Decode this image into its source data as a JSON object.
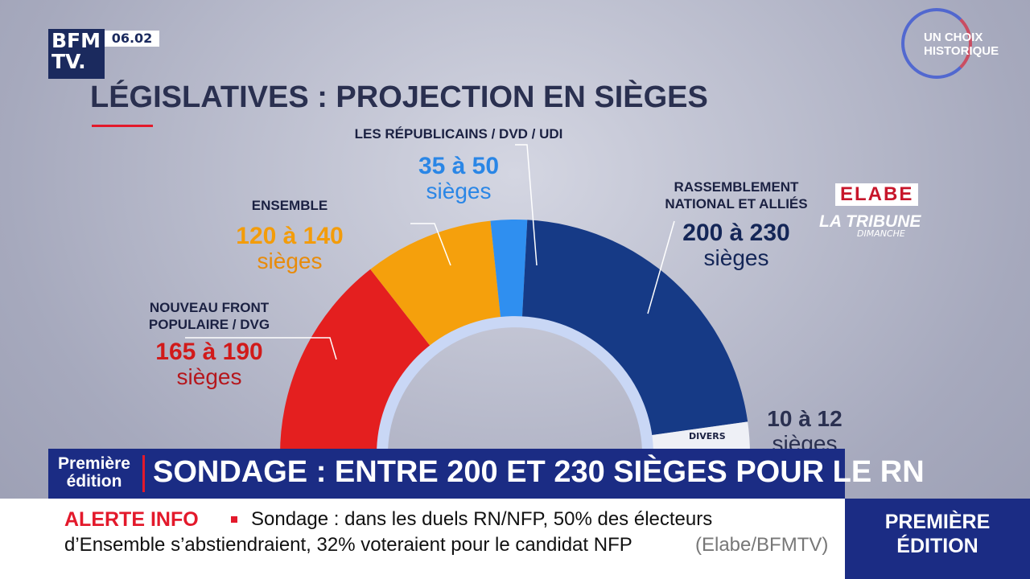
{
  "header": {
    "logo_top": "BFM",
    "logo_bottom": "TV.",
    "time": "06.02",
    "badge_lines": [
      "UN CHOIX",
      "HISTORIQUE"
    ]
  },
  "graphic": {
    "title": "LÉGISLATIVES : PROJECTION EN SIÈGES",
    "groups": [
      {
        "name_lines": [
          "NOUVEAU FRONT",
          "POPULAIRE / DVG"
        ],
        "range": "165 à 190",
        "unit": "sièges"
      },
      {
        "name_lines": [
          "ENSEMBLE"
        ],
        "range": "120 à 140",
        "unit": "sièges"
      },
      {
        "name_lines": [
          "LES RÉPUBLICAINS / DVD / UDI"
        ],
        "range": "35 à 50",
        "unit": "sièges"
      },
      {
        "name_lines": [
          "RASSEMBLEMENT",
          "NATIONAL ET ALLIÉS"
        ],
        "range": "200 à 230",
        "unit": "sièges"
      },
      {
        "name_lines": [
          "DIVERS"
        ],
        "range": "10 à 12",
        "unit": "sièges"
      }
    ],
    "sources": {
      "elabe": "ELABE",
      "tribune": "LA TRIBUNE",
      "tribune_sub": "DIMANCHE"
    }
  },
  "banner": {
    "edition_lines": [
      "Première",
      "édition"
    ],
    "headline": "SONDAGE : ENTRE 200 ET 230 SIÈGES POUR LE RN"
  },
  "ticker": {
    "label": "ALERTE INFO",
    "line1": "Sondage : dans les duels RN/NFP, 50% des électeurs",
    "line2": "d’Ensemble s’abstiendraient, 32% voteraient pour le candidat NFP",
    "source": "(Elabe/BFMTV)",
    "program_lines": [
      "PREMIÈRE",
      "ÉDITION"
    ]
  }
}
